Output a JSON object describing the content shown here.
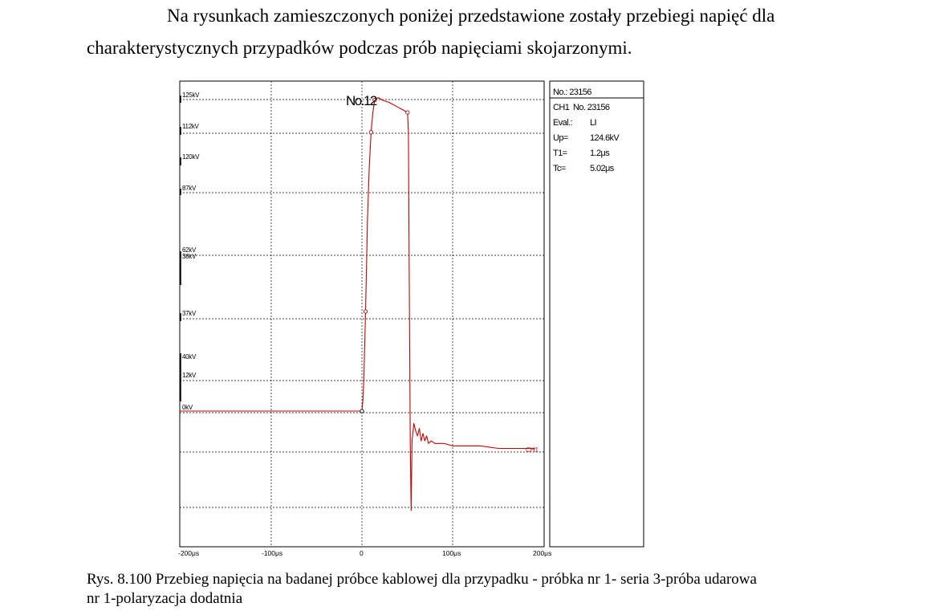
{
  "document": {
    "paragraph": [
      "Na rysunkach zamieszczonych poniżej przedstawione zostały przebiegi napięć dla",
      "charakterystycznych przypadków podczas prób napięciami skojarzonymi."
    ],
    "caption": [
      "Rys. 8.100 Przebieg napięcia na badanej próbce kablowej dla przypadku - próbka nr 1- seria 3-próba udarowa",
      "nr 1-polaryzacja dodatnia"
    ]
  },
  "figure": {
    "marker_label": "No.12",
    "channel_label": "CH1",
    "trace_color": "#cc0000",
    "y_tick_labels": [
      "125kV",
      "112kV",
      "120kV",
      "87kV",
      "62kV",
      "38kV",
      "37kV",
      "40kV",
      "12kV",
      "0kV"
    ],
    "x_tick_labels": [
      "-200μs",
      "-100μs",
      "0",
      "100μs",
      "200μs"
    ],
    "info_panel": {
      "no_line": "No.: 23156",
      "ch_label": "CH1",
      "ch_value": "No. 23156",
      "eval_label": "Eval.:",
      "eval_value": "LI",
      "up_label": "Up=",
      "up_value": "124.6kV",
      "t1_label": "T1=",
      "t1_value": "1.2μs",
      "tc_label": "Tc=",
      "tc_value": "5.02μs"
    }
  },
  "chart_data": {
    "type": "line",
    "title": "",
    "xlabel": "",
    "ylabel": "",
    "x_unit": "μs",
    "xlim": [
      -200,
      200
    ],
    "series": [
      {
        "name": "CH1",
        "x": [
          -200,
          0,
          1,
          2,
          3,
          4,
          5,
          6,
          8,
          10,
          12,
          14,
          18,
          22,
          30,
          40,
          45,
          50,
          51,
          52,
          53,
          54,
          55,
          57,
          59,
          61,
          63,
          65,
          67,
          69,
          71,
          73,
          76,
          80,
          90,
          100,
          110,
          130,
          150,
          170,
          190
        ],
        "y": [
          0,
          0,
          4,
          12,
          26,
          40,
          58,
          76,
          98,
          112,
          120,
          125,
          126,
          125,
          124,
          122,
          121,
          120,
          112,
          50,
          -12,
          -40,
          -12,
          -5,
          -8,
          -10,
          -7,
          -12,
          -9,
          -12,
          -10,
          -13,
          -12,
          -13,
          -13,
          -14,
          -14,
          -14,
          -15,
          -15,
          -15
        ]
      }
    ]
  }
}
